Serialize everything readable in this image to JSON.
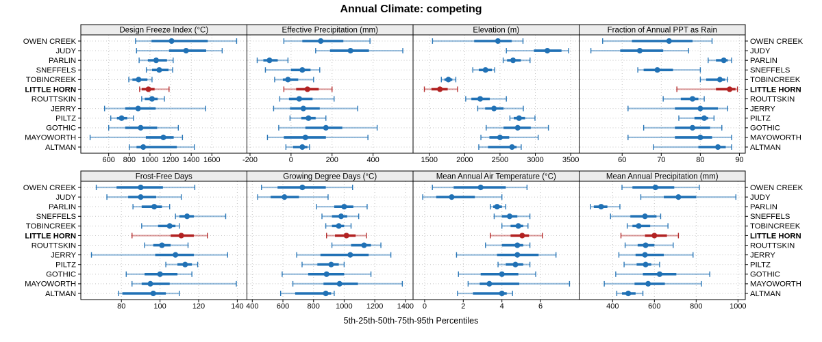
{
  "title": "Annual Climate: competing",
  "xlabel": "5th-25th-50th-75th-95th Percentiles",
  "sites": [
    "OWEN CREEK",
    "JUDY",
    "PARLIN",
    "SNEFFELS",
    "TOBINCREEK",
    "LITTLE HORN",
    "ROUTTSKIN",
    "JERRY",
    "PILTZ",
    "GOTHIC",
    "MAYOWORTH",
    "ALTMAN"
  ],
  "highlight_site": "LITTLE HORN",
  "colors": {
    "series_blue": "#2071b5",
    "series_red": "#b22222",
    "strip_bg": "#ececec",
    "panel_border": "#000000",
    "grid": "#c4c4c4",
    "text": "#000000"
  },
  "chart_data": {
    "type": "dot-whisker-percentiles",
    "percentiles": [
      "5th",
      "25th",
      "50th",
      "75th",
      "95th"
    ],
    "legend_note": "values per site are [5th,25th,50th,75th,95th] percentiles",
    "grid": "2 rows x 4 columns",
    "rows_order_top_to_bottom": [
      "OWEN CREEK",
      "JUDY",
      "PARLIN",
      "SNEFFELS",
      "TOBINCREEK",
      "LITTLE HORN",
      "ROUTTSKIN",
      "JERRY",
      "PILTZ",
      "GOTHIC",
      "MAYOWORTH",
      "ALTMAN"
    ],
    "panels": [
      {
        "title": "Design Freeze Index (°C)",
        "row": 0,
        "col": 0,
        "xlim": [
          330,
          1940
        ],
        "ticks": [
          600,
          800,
          1000,
          1200,
          1400,
          1600
        ],
        "values": {
          "OWEN CREEK": [
            860,
            1015,
            1210,
            1560,
            1840
          ],
          "JUDY": [
            870,
            1185,
            1350,
            1545,
            1700
          ],
          "PARLIN": [
            895,
            980,
            1060,
            1165,
            1225
          ],
          "SNEFFELS": [
            965,
            1020,
            1090,
            1180,
            1220
          ],
          "TOBINCREEK": [
            795,
            830,
            890,
            975,
            1020
          ],
          "LITTLE HORN": [
            900,
            920,
            985,
            1045,
            1185
          ],
          "ROUTTSKIN": [
            920,
            950,
            1020,
            1075,
            1140
          ],
          "JERRY": [
            560,
            760,
            885,
            1055,
            1540
          ],
          "PILTZ": [
            620,
            680,
            725,
            780,
            840
          ],
          "GOTHIC": [
            600,
            760,
            910,
            1070,
            1275
          ],
          "MAYOWORTH": [
            420,
            960,
            1130,
            1230,
            1315
          ],
          "ALTMAN": [
            800,
            870,
            935,
            1260,
            1430
          ]
        }
      },
      {
        "title": "Effective Precipitation (mm)",
        "row": 0,
        "col": 1,
        "xlim": [
          -215,
          595
        ],
        "ticks": [
          -200,
          0,
          200,
          400
        ],
        "values": {
          "OWEN CREEK": [
            -35,
            55,
            145,
            255,
            385
          ],
          "JUDY": [
            120,
            190,
            290,
            380,
            545
          ],
          "PARLIN": [
            -165,
            -135,
            -105,
            -65,
            -15
          ],
          "SNEFFELS": [
            -125,
            0,
            55,
            95,
            140
          ],
          "TOBINCREEK": [
            -80,
            -40,
            -15,
            35,
            110
          ],
          "LITTLE HORN": [
            -35,
            25,
            80,
            135,
            200
          ],
          "ROUTTSKIN": [
            -55,
            -10,
            40,
            105,
            210
          ],
          "JERRY": [
            -85,
            -5,
            60,
            140,
            325
          ],
          "PILTZ": [
            -5,
            50,
            85,
            120,
            170
          ],
          "GOTHIC": [
            -60,
            70,
            170,
            250,
            420
          ],
          "MAYOWORTH": [
            -115,
            -35,
            70,
            170,
            375
          ],
          "ALTMAN": [
            -25,
            10,
            55,
            80,
            90
          ]
        }
      },
      {
        "title": "Elevation (m)",
        "row": 0,
        "col": 2,
        "xlim": [
          1270,
          3620
        ],
        "ticks": [
          1500,
          2000,
          2500,
          3000,
          3500
        ],
        "values": {
          "OWEN CREEK": [
            1545,
            2135,
            2470,
            2665,
            2825
          ],
          "JUDY": [
            2590,
            2980,
            3170,
            3370,
            3470
          ],
          "PARLIN": [
            2545,
            2600,
            2685,
            2795,
            2925
          ],
          "SNEFFELS": [
            2115,
            2200,
            2295,
            2385,
            2425
          ],
          "TOBINCREEK": [
            1670,
            1715,
            1770,
            1825,
            1875
          ],
          "LITTLE HORN": [
            1430,
            1530,
            1650,
            1760,
            1900
          ],
          "ROUTTSKIN": [
            2015,
            2095,
            2220,
            2355,
            2590
          ],
          "JERRY": [
            2185,
            2290,
            2415,
            2550,
            2830
          ],
          "PILTZ": [
            2640,
            2695,
            2770,
            2855,
            2995
          ],
          "GOTHIC": [
            2305,
            2550,
            2750,
            2935,
            3185
          ],
          "MAYOWORTH": [
            2230,
            2350,
            2500,
            2630,
            3040
          ],
          "ALTMAN": [
            2200,
            2330,
            2670,
            2735,
            2800
          ]
        }
      },
      {
        "title": "Fraction of Annual PPT as Rain",
        "row": 0,
        "col": 3,
        "xlim": [
          49,
          91.5
        ],
        "ticks": [
          60,
          70,
          80,
          90
        ],
        "values": {
          "OWEN CREEK": [
            55,
            62.5,
            72,
            78,
            83
          ],
          "JUDY": [
            52,
            59.5,
            64.5,
            70.5,
            77
          ],
          "PARLIN": [
            82,
            84,
            86,
            87,
            88
          ],
          "SNEFFELS": [
            64,
            65.5,
            69,
            73,
            80
          ],
          "TOBINCREEK": [
            80,
            81.5,
            85,
            86.3,
            87
          ],
          "LITTLE HORN": [
            74,
            84,
            87.5,
            89,
            89.5
          ],
          "ROUTTSKIN": [
            70.5,
            75,
            78,
            79.5,
            81
          ],
          "JERRY": [
            61.5,
            73.5,
            80,
            84.5,
            87
          ],
          "PILTZ": [
            74.5,
            78.5,
            81,
            82,
            83.5
          ],
          "GOTHIC": [
            65.5,
            73.5,
            78,
            82.5,
            85.5
          ],
          "MAYOWORTH": [
            61.5,
            73.5,
            80,
            83,
            88
          ],
          "ALTMAN": [
            68,
            79.5,
            84.5,
            86.5,
            88
          ]
        }
      },
      {
        "title": "Frost-Free Days",
        "row": 1,
        "col": 0,
        "xlim": [
          59,
          145
        ],
        "ticks": [
          80,
          100,
          120,
          140
        ],
        "values": {
          "OWEN CREEK": [
            67,
            77.5,
            90,
            101.5,
            118
          ],
          "JUDY": [
            72.5,
            83.5,
            90,
            98,
            111
          ],
          "PARLIN": [
            86,
            90.5,
            97,
            101,
            105
          ],
          "SNEFFELS": [
            108,
            110,
            114,
            117.5,
            134
          ],
          "TOBINCREEK": [
            90.5,
            99,
            105,
            108,
            110
          ],
          "LITTLE HORN": [
            85.5,
            105.5,
            111,
            117.5,
            124.5
          ],
          "ROUTTSKIN": [
            92,
            96.5,
            101,
            105.5,
            114.5
          ],
          "JERRY": [
            64.5,
            97.5,
            108,
            117.5,
            135
          ],
          "PILTZ": [
            103,
            109,
            113,
            116.5,
            119.5
          ],
          "GOTHIC": [
            82.5,
            92,
            100,
            109,
            116.5
          ],
          "MAYOWORTH": [
            85.5,
            90.5,
            95,
            105,
            139.5
          ],
          "ALTMAN": [
            78.5,
            80.5,
            96.5,
            103,
            110
          ]
        }
      },
      {
        "title": "Growing Degree Days (°C)",
        "row": 1,
        "col": 1,
        "xlim": [
          365,
          1450
        ],
        "ticks": [
          400,
          600,
          800,
          1000,
          1200,
          1400
        ],
        "values": {
          "OWEN CREEK": [
            460,
            565,
            727,
            880,
            1055
          ],
          "JUDY": [
            435,
            520,
            610,
            705,
            895
          ],
          "PARLIN": [
            820,
            935,
            1000,
            1060,
            1150
          ],
          "SNEFFELS": [
            855,
            920,
            980,
            1020,
            1095
          ],
          "TOBINCREEK": [
            880,
            920,
            965,
            1000,
            1045
          ],
          "LITTLE HORN": [
            885,
            940,
            1015,
            1075,
            1145
          ],
          "ROUTTSKIN": [
            920,
            1045,
            1130,
            1175,
            1240
          ],
          "JERRY": [
            690,
            845,
            1040,
            1160,
            1305
          ],
          "PILTZ": [
            725,
            825,
            915,
            965,
            1000
          ],
          "GOTHIC": [
            595,
            765,
            885,
            1000,
            1175
          ],
          "MAYOWORTH": [
            665,
            865,
            970,
            1090,
            1380
          ],
          "ALTMAN": [
            585,
            680,
            880,
            915,
            935
          ]
        }
      },
      {
        "title": "Mean Annual Air Temperature (°C)",
        "row": 1,
        "col": 2,
        "xlim": [
          -0.6,
          8.0
        ],
        "ticks": [
          0,
          2,
          4,
          6
        ],
        "values": {
          "OWEN CREEK": [
            0.4,
            1.5,
            2.9,
            4.2,
            5.3
          ],
          "JUDY": [
            -0.1,
            0.6,
            1.4,
            2.6,
            4.0
          ],
          "PARLIN": [
            3.4,
            3.55,
            3.75,
            4.0,
            4.2
          ],
          "SNEFFELS": [
            3.6,
            4.0,
            4.4,
            4.8,
            5.45
          ],
          "TOBINCREEK": [
            4.0,
            4.45,
            4.85,
            5.1,
            5.35
          ],
          "LITTLE HORN": [
            3.4,
            4.45,
            5.05,
            5.4,
            6.1
          ],
          "ROUTTSKIN": [
            3.15,
            4.0,
            4.8,
            5.1,
            5.45
          ],
          "JERRY": [
            1.65,
            3.75,
            4.8,
            5.9,
            6.8
          ],
          "PILTZ": [
            3.8,
            4.2,
            4.7,
            5.1,
            5.45
          ],
          "GOTHIC": [
            1.75,
            2.9,
            4.0,
            4.85,
            5.75
          ],
          "MAYOWORTH": [
            2.25,
            2.85,
            3.35,
            4.9,
            7.5
          ],
          "ALTMAN": [
            1.7,
            2.5,
            4.0,
            4.25,
            4.55
          ]
        }
      },
      {
        "title": "Mean Annual Precipitation (mm)",
        "row": 1,
        "col": 3,
        "xlim": [
          240,
          1035
        ],
        "ticks": [
          400,
          600,
          800,
          1000
        ],
        "values": {
          "OWEN CREEK": [
            445,
            495,
            605,
            695,
            815
          ],
          "JUDY": [
            535,
            645,
            715,
            800,
            990
          ],
          "PARLIN": [
            295,
            310,
            345,
            375,
            435
          ],
          "SNEFFELS": [
            390,
            485,
            555,
            610,
            630
          ],
          "TOBINCREEK": [
            470,
            495,
            525,
            580,
            665
          ],
          "LITTLE HORN": [
            440,
            555,
            600,
            660,
            715
          ],
          "ROUTTSKIN": [
            460,
            520,
            558,
            600,
            690
          ],
          "JERRY": [
            430,
            510,
            555,
            645,
            785
          ],
          "PILTZ": [
            455,
            515,
            558,
            585,
            625
          ],
          "GOTHIC": [
            415,
            545,
            625,
            705,
            865
          ],
          "MAYOWORTH": [
            360,
            505,
            570,
            650,
            825
          ],
          "ALTMAN": [
            420,
            445,
            475,
            510,
            545
          ]
        }
      }
    ]
  }
}
